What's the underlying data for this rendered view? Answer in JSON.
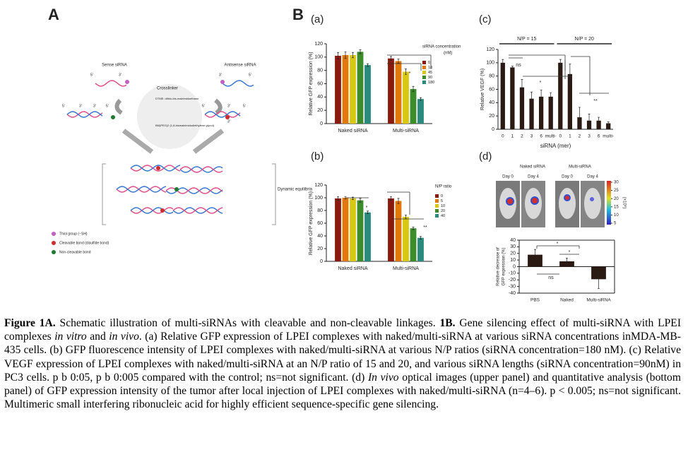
{
  "figure": {
    "panel_labels": [
      "A",
      "B",
      "(a)",
      "(b)",
      "(c)",
      "(d)"
    ]
  },
  "schematic": {
    "sense": "Sense siRNA",
    "antisense": "Antisense siRNA",
    "crosslinker": "Crosslinker",
    "dtme": "DTME: dithio-bis-maleimidoethane",
    "bmpeg": "BM(PEG)2 (1,8-bismaleimidodiethylene glycol)",
    "equilibria": "Dynamic equilibria",
    "strand_ends": [
      "5'",
      "3'",
      "3'",
      "5'",
      "5'",
      "3'",
      "3'",
      "5'",
      "5'",
      "3'",
      "3'",
      "5'"
    ],
    "legend": [
      "Thiol group (−SH)",
      "Cleavable bond (disulfide bond)",
      "Non-cleavable bond"
    ]
  },
  "chart_data": [
    {
      "type": "bar",
      "ylabel": "Relative GFP expression (%)",
      "categories": [
        "Naked siRNA",
        "Multi-siRNA"
      ],
      "legend_title": [
        "siRNA concentration",
        "(nM)"
      ],
      "series": [
        {
          "name": "0",
          "color": "#8b1a0e",
          "values": [
            102,
            98
          ],
          "errors": [
            5,
            3
          ]
        },
        {
          "name": "18",
          "color": "#e0780a",
          "values": [
            103,
            94
          ],
          "errors": [
            5,
            3
          ]
        },
        {
          "name": "45",
          "color": "#d8c814",
          "values": [
            103,
            78
          ],
          "errors": [
            4,
            4
          ]
        },
        {
          "name": "90",
          "color": "#3c8c2c",
          "values": [
            108,
            52
          ],
          "errors": [
            3,
            4
          ]
        },
        {
          "name": "180",
          "color": "#2a8a7c",
          "values": [
            88,
            37
          ],
          "errors": [
            2,
            2
          ]
        }
      ],
      "ylim": [
        0,
        120
      ],
      "yticks": [
        0,
        20,
        40,
        60,
        80,
        100,
        120
      ],
      "annotations": [
        "*"
      ]
    },
    {
      "type": "bar",
      "ylabel": "Relative GFP expression (%)",
      "categories": [
        "Naked siRNA",
        "Multi-siRNA"
      ],
      "legend_title": [
        "N/P ratio"
      ],
      "series": [
        {
          "name": "0",
          "color": "#8b1a0e",
          "values": [
            99,
            99
          ],
          "errors": [
            3,
            3
          ]
        },
        {
          "name": "5",
          "color": "#e0780a",
          "values": [
            100,
            95
          ],
          "errors": [
            2,
            4
          ]
        },
        {
          "name": "10",
          "color": "#d8c814",
          "values": [
            99,
            70
          ],
          "errors": [
            2,
            3
          ]
        },
        {
          "name": "20",
          "color": "#3c8c2c",
          "values": [
            96,
            52
          ],
          "errors": [
            3,
            2
          ]
        },
        {
          "name": "40",
          "color": "#2a8a7c",
          "values": [
            77,
            37
          ],
          "errors": [
            2,
            2
          ]
        }
      ],
      "ylim": [
        0,
        120
      ],
      "yticks": [
        0,
        20,
        40,
        60,
        80,
        100,
        120
      ],
      "annotations": [
        "*",
        "**"
      ]
    },
    {
      "type": "bar",
      "ylabel": "Relative VEGF (%)",
      "xlabel": "siRNA (mer)",
      "categories": [
        "0",
        "1",
        "2",
        "3",
        "6",
        "multi-",
        "0",
        "1",
        "2",
        "3",
        "6",
        "multi-"
      ],
      "group_labels": [
        "N/P = 15",
        "N/P = 20"
      ],
      "series": [
        {
          "color": "#2b1a14",
          "values": [
            100,
            93,
            63,
            46,
            49,
            49,
            100,
            83,
            18,
            13,
            13,
            9
          ],
          "errors": [
            5,
            2,
            12,
            10,
            10,
            6,
            5,
            15,
            15,
            10,
            5,
            2
          ]
        }
      ],
      "ylim": [
        0,
        120
      ],
      "yticks": [
        0,
        20,
        40,
        60,
        80,
        100,
        120
      ],
      "annotations": [
        "ns",
        "*",
        "**"
      ]
    },
    {
      "type": "bar",
      "ylabel": [
        "Relative decrease of",
        "GFP expression (%)"
      ],
      "categories": [
        "PBS",
        "Naked",
        "Multi-siRNA"
      ],
      "series": [
        {
          "color": "#2b1a14",
          "values": [
            18,
            8,
            -19
          ],
          "errors": [
            8,
            5,
            14
          ]
        }
      ],
      "ylim": [
        -40,
        40
      ],
      "yticks": [
        -40,
        -30,
        -20,
        -10,
        0,
        10,
        20,
        30,
        40
      ],
      "annotations": [
        "*",
        "*",
        "ns"
      ]
    }
  ],
  "optical_images": {
    "groups": [
      "Naked siRNA",
      "Multi-siRNA"
    ],
    "days": [
      "Day 0",
      "Day 4",
      "Day 0",
      "Day 4"
    ],
    "colorbar_ticks": [
      5,
      10,
      15,
      20,
      25,
      30
    ],
    "colorbar_label": "(×10⁹)"
  },
  "caption": [
    "Figure 1A.",
    "Schematic illustration of multi-siRNAs with cleavable and non-cleavable linkages.",
    "1B.",
    "Gene silencing effect of multi-siRNA with LPEI complexes",
    "in vitro",
    "and",
    "in vivo",
    ". (a) Relative GFP expression of LPEI complexes with naked/multi-siRNA at various siRNA concentrations inMDA-MB-435 cells. (b) GFP fluorescence intensity of LPEI complexes with naked/multi-siRNA at various N/P ratios (siRNA concentration=180 nM). (c) Relative VEGF expression of LPEI complexes with naked/multi-siRNA at an N/P ratio of 15 and 20, and various siRNA lengths (siRNA concentration=90nM) in PC3 cells. p b 0:05, p b 0:005 compared with the control; ns=not significant. (d)",
    "In vivo",
    "optical images (upper panel) and quantitative analysis (bottom panel) of GFP expression intensity of the tumor after local injection of LPEI complexes with naked/multi-siRNA (n=4–6). p < 0.005; ns=not significant. Multimeric small interfering ribonucleic acid for highly efficient sequence-specific gene silencing."
  ]
}
